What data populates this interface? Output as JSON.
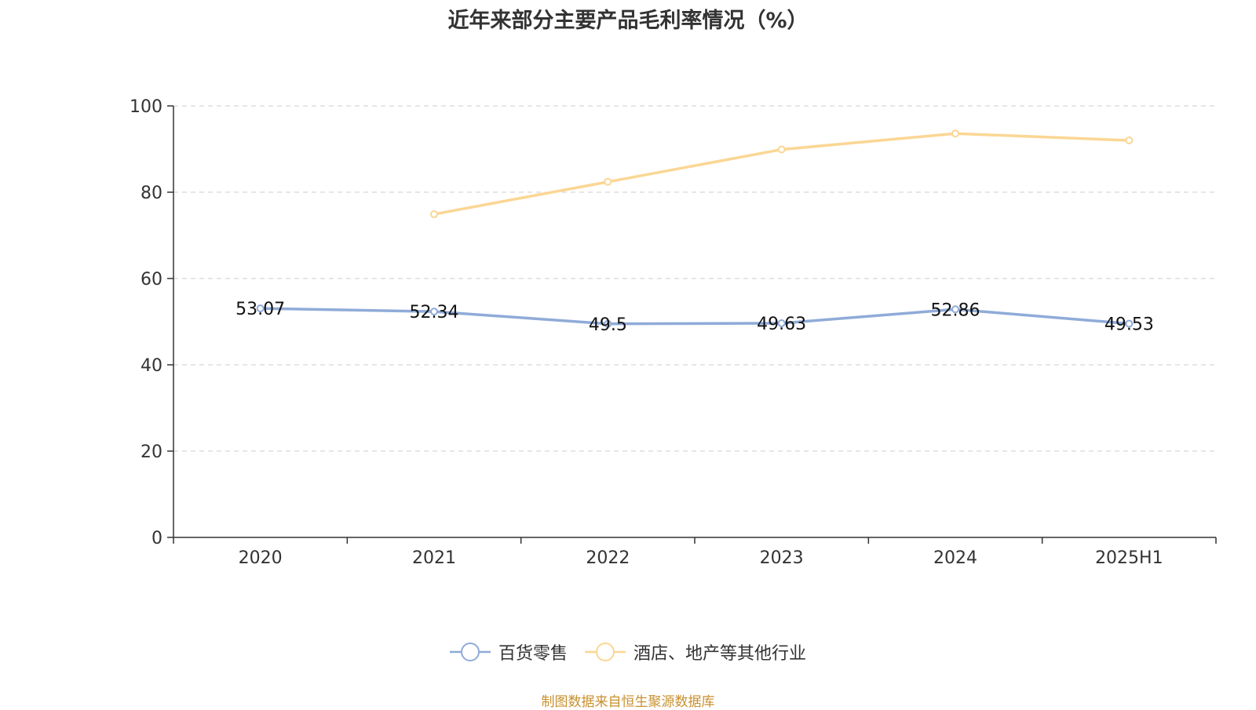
{
  "chart_data": {
    "type": "line",
    "title": "近年来部分主要产品毛利率情况（%）",
    "categories": [
      "2020",
      "2021",
      "2022",
      "2023",
      "2024",
      "2025H1"
    ],
    "ylim": [
      0,
      100
    ],
    "yticks": [
      0,
      20,
      40,
      60,
      80,
      100
    ],
    "grid": true,
    "legend_position": "bottom-center",
    "series": [
      {
        "name": "百货零售",
        "color": "#8fabd8",
        "values": [
          53.07,
          52.34,
          49.5,
          49.63,
          52.86,
          49.53
        ],
        "labels": [
          "53.07",
          "52.34",
          "49.5",
          "49.63",
          "52.86",
          "49.53"
        ],
        "show_labels": true
      },
      {
        "name": "酒店、地产等其他行业",
        "color": "#fbd694",
        "values": [
          null,
          74.9,
          82.4,
          89.9,
          93.6,
          92.0
        ],
        "show_labels": false
      }
    ]
  },
  "source": "制图数据来自恒生聚源数据库"
}
